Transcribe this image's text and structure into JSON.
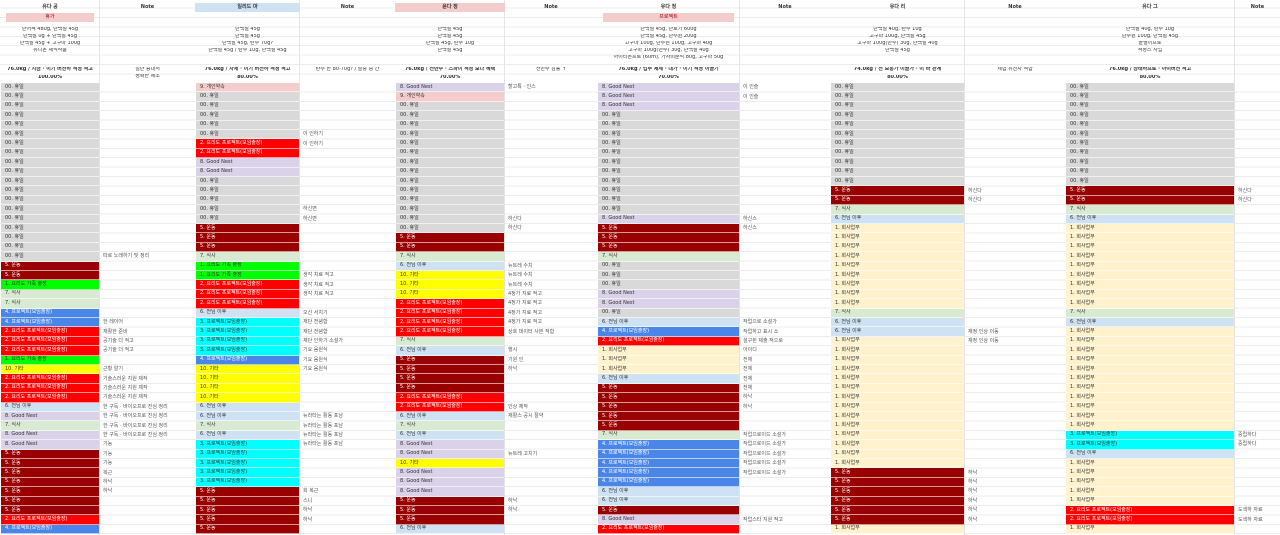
{
  "cell_colors": {
    "00. 휴일": "#d9d9d9",
    "2. 요리도 프로젝트(모임출장)": "#ff0000",
    "5. 운동": "#990000",
    "8. Good Nest": "#d9d2e9",
    "4. 프로젝트(모임출장)": "#4a86e8",
    "3. 프로젝트(모임출장)": "#00ffff",
    "10. 기타": "#ffff00",
    "1. 요리도 가족 출장": "#00ff00",
    "6. 전님 이후": "#cfe2f3",
    "1. 회사업무": "#fff2cc",
    "7. 식사": "#d9ead3",
    "9. 개인약속": "#f4cccc"
  },
  "groups": [
    {
      "name": "유다 공",
      "note_header": "Note",
      "tag": "휴가",
      "tag_color": "#f4cccc",
      "summary": [
        "단어적 480g, 단백질 45g",
        "단백질 0g + 단백질 45g",
        "단백질 45g + 고구마 100g",
        "유니온 채식작품"
      ],
      "goal": "76.0kg / 지금 · 이기 버전하 적정 적고",
      "percent": "100.00%",
      "note_summary": [
        "일반 증대서",
        "정확한 제조"
      ],
      "cells": [
        "00. 휴일",
        "00. 휴일",
        "00. 휴일",
        "00. 휴일",
        "00. 휴일",
        "00. 휴일",
        "00. 휴일",
        "00. 휴일",
        "00. 휴일",
        "00. 휴일",
        "00. 휴일",
        "00. 휴일",
        "00. 휴일",
        "00. 휴일",
        "00. 휴일",
        "00. 휴일",
        "00. 휴일",
        "00. 휴일",
        "00. 휴일",
        "5. 운동",
        "5. 운동",
        "1. 요리도 가족 출장",
        "7. 식사",
        "7. 식사",
        "4. 프로젝트(모임출장)",
        "4. 프로젝트(모임출장)",
        "2. 요리도 프로젝트(모임출장)",
        "2. 요리도 프로젝트(모임출장)",
        "2. 요리도 프로젝트(모임출장)",
        "1. 요리도 가족 출장",
        "10. 기타",
        "2. 요리도 프로젝트(모임출장)",
        "2. 요리도 프로젝트(모임출장)",
        "2. 요리도 프로젝트(모임출장)",
        "6. 전님 이후",
        "8. Good Nest",
        "7. 식사",
        "8. Good Nest",
        "8. Good Nest",
        "5. 운동",
        "5. 운동",
        "5. 운동",
        "5. 운동",
        "5. 운동",
        "5. 운동",
        "5. 운동",
        "2. 요리도 프로젝트(모임출장)",
        "4. 프로젝트(모임출장)"
      ],
      "notes": [
        null,
        null,
        null,
        null,
        null,
        null,
        null,
        null,
        null,
        null,
        null,
        null,
        null,
        null,
        null,
        null,
        null,
        null,
        "따로 노래하기 및 정리",
        null,
        null,
        null,
        null,
        null,
        null,
        "한 레이어",
        "재활한 준비",
        "공기술 더 적고",
        "공기술 더 적고",
        null,
        "근황 알기",
        "기술스러운 지원 제작",
        "기술스러운 지원 제작",
        "기술스러운 지원 제작",
        "한 구독 · 바이오프로 진심 정리",
        "한 구독 · 바이오프로 진심 정리",
        "한 구독 · 바이오프로 진심 정리",
        "한 구독 · 바이오프로 진심 정리",
        "기능",
        "기능",
        "기능",
        "복근",
        "하낙",
        "하낙",
        null,
        null,
        null,
        null
      ]
    },
    {
      "name": "일리드 마",
      "name_color": "#cfe2f3",
      "note_header": "Note",
      "summary": [
        "단백질 45g",
        "단백질 45g",
        "단백질 45g, 탄수 70g?",
        "단백질 45g / 탄수 10g, 단백질 45g"
      ],
      "goal": "76.0kg / 자체 · 이기 버전하 적정 적고",
      "percent": "80.00%",
      "note_summary": [
        "탄수 한 80-70g? / 탈중 중 간"
      ],
      "cells": [
        "9. 개인약속",
        "00. 휴일",
        "00. 휴일",
        "00. 휴일",
        "00. 휴일",
        "00. 휴일",
        "2. 요리도 프로젝트(모임출장)",
        "2. 요리도 프로젝트(모임출장)",
        "8. Good Nest",
        "8. Good Nest",
        "00. 휴일",
        "00. 휴일",
        "00. 휴일",
        "00. 휴일",
        "00. 휴일",
        "5. 운동",
        "5. 운동",
        "5. 운동",
        "7. 식사",
        "1. 요리도 가족 출장",
        "1. 요리도 가족 출장",
        "2. 요리도 프로젝트(모임출장)",
        "2. 요리도 프로젝트(모임출장)",
        "2. 요리도 프로젝트(모임출장)",
        "6. 전님 이후",
        "3. 프로젝트(모임출장)",
        "3. 프로젝트(모임출장)",
        "3. 프로젝트(모임출장)",
        "3. 프로젝트(모임출장)",
        "4. 프로젝트(모임출장)",
        "10. 기타",
        "10. 기타",
        "10. 기타",
        "10. 기타",
        "6. 전님 이후",
        "6. 전님 이후",
        "7. 식사",
        "6. 전님 이후",
        "3. 프로젝트(모임출장)",
        "3. 프로젝트(모임출장)",
        "3. 프로젝트(모임출장)",
        "3. 프로젝트(모임출장)",
        "3. 프로젝트(모임출장)",
        "5. 운동",
        "5. 운동",
        "5. 운동",
        "5. 운동",
        "5. 운동"
      ],
      "notes": [
        null,
        null,
        null,
        null,
        null,
        "이 인하기",
        "이 인하기",
        null,
        null,
        null,
        null,
        null,
        null,
        "하신면",
        "하신면",
        null,
        null,
        null,
        null,
        null,
        "생각 치료 적고",
        "생각 치료 적고",
        "생각 치료 적고",
        null,
        "오신 서치기",
        "재단 전념함",
        "재단 전념함",
        "재단 인하기 소설가",
        "기요 음원식",
        "기요 음원식",
        "기요 음원식",
        null,
        null,
        null,
        null,
        "뉴라타는 활동 포남",
        "뉴라타는 활동 포남",
        "뉴라타는 활동 포남",
        "뉴라타는 활동 포남",
        null,
        null,
        null,
        null,
        "회 복근",
        "스니",
        "하낙",
        "하낙",
        null
      ]
    },
    {
      "name": "윤다 정",
      "name_color": "#f4cccc",
      "note_header": "Note",
      "summary": [
        "단백질 45g",
        "단백질 45g",
        "단백질 45g, 탄수 10g",
        "단백질 45g"
      ],
      "goal": "76.0kg / 전반수 · 스파이 적정 보다 혜택",
      "percent": "70.00%",
      "note_summary": [
        "전반수 감률 ↑"
      ],
      "cells": [
        "8. Good Nest",
        "9. 개인약속",
        "00. 휴일",
        "00. 휴일",
        "00. 휴일",
        "00. 휴일",
        "00. 휴일",
        "00. 휴일",
        "00. 휴일",
        "00. 휴일",
        "00. 휴일",
        "00. 휴일",
        "00. 휴일",
        "00. 휴일",
        "00. 휴일",
        "00. 휴일",
        "5. 운동",
        "5. 운동",
        "7. 식사",
        "6. 전님 이후",
        "10. 기타",
        "10. 기타",
        "10. 기타",
        "2. 요리도 프로젝트(모임출장)",
        "2. 요리도 프로젝트(모임출장)",
        "2. 요리도 프로젝트(모임출장)",
        "2. 요리도 프로젝트(모임출장)",
        "7. 식사",
        "6. 전님 이후",
        "5. 운동",
        "5. 운동",
        "5. 운동",
        "5. 운동",
        "2. 요리도 프로젝트(모임출장)",
        "2. 요리도 프로젝트(모임출장)",
        "6. 전님 이후",
        "7. 식사",
        "6. 전님 이후",
        "8. Good Nest",
        "8. Good Nest",
        "10. 기타",
        "8. Good Nest",
        "8. Good Nest",
        "8. Good Nest",
        "5. 운동",
        "5. 운동",
        "5. 운동",
        "6. 전님 이후"
      ],
      "notes": [
        "할고특 · 인스",
        null,
        null,
        null,
        null,
        null,
        null,
        null,
        null,
        null,
        null,
        null,
        null,
        null,
        "하신다",
        "하신다",
        null,
        null,
        null,
        "뉴트레 수치",
        "뉴트레 수치",
        "뉴트레 수치",
        "4정가 지료 적고",
        "4정가 지료 적고",
        "4정가 지료 적고",
        "4정가 지료 적고",
        "상호 데이터 사본 적합",
        null,
        "행시",
        "기원 인",
        "하낙",
        null,
        null,
        null,
        "인상 제작",
        "재활스 공시 절약",
        null,
        null,
        null,
        "뉴트레 고치기",
        null,
        null,
        null,
        null,
        "하낙",
        "하낙",
        null,
        null
      ]
    },
    {
      "name": "유다 정",
      "note_header": "Note",
      "tag": "프로젝트",
      "tag_color": "#f4cccc",
      "summary": [
        "단백질 45g, 단호기 600g",
        "단백질 45g, 단수원 200g",
        "고구마 100g, 단수원 100g, 고구마 40g",
        "고구마 100g(반수) 30g, 단백질 40g",
        "아이티폰프로 (60m), 가자미분석 80g, 고구마 50g"
      ],
      "goal": "76.0kg / 업무 제체 · 대가 · 이기 적정 이끌기",
      "percent": "70.00%",
      "cells": [
        "8. Good Nest",
        "8. Good Nest",
        "8. Good Nest",
        "00. 휴일",
        "00. 휴일",
        "00. 휴일",
        "00. 휴일",
        "00. 휴일",
        "00. 휴일",
        "00. 휴일",
        "00. 휴일",
        "00. 휴일",
        "00. 휴일",
        "00. 휴일",
        "8. Good Nest",
        "5. 운동",
        "5. 운동",
        "5. 운동",
        "7. 식사",
        "00. 휴일",
        "00. 휴일",
        "00. 휴일",
        "8. Good Nest",
        "8. Good Nest",
        "00. 휴일",
        "6. 전님 이후",
        "4. 프로젝트(모임출장)",
        "2. 요리도 프로젝트(모임출장)",
        "1. 회사업무",
        "1. 회사업무",
        "1. 회사업무",
        "6. 전님 이후",
        "5. 운동",
        "5. 운동",
        "5. 운동",
        "5. 운동",
        "5. 운동",
        "7. 식사",
        "4. 프로젝트(모임출장)",
        "4. 프로젝트(모임출장)",
        "4. 프로젝트(모임출장)",
        "4. 프로젝트(모임출장)",
        "4. 프로젝트(모임출장)",
        "6. 전님 이후",
        "6. 전님 이후",
        "5. 운동",
        "8. Good Nest",
        "2. 요리도 프로젝트(모임출장)"
      ],
      "notes": [
        "이 인슬",
        "이 인슬",
        null,
        null,
        null,
        null,
        null,
        null,
        null,
        null,
        null,
        null,
        null,
        null,
        "하신스",
        "하신스",
        null,
        null,
        null,
        null,
        null,
        null,
        null,
        null,
        null,
        "작업으로 소설가",
        "작업하고 표시 소",
        "설구된 제출 적으로",
        "아이디",
        "전체",
        "전체",
        "전체",
        "전체",
        "하낙",
        "하낙",
        null,
        null,
        "작업으로이드 소설가",
        "작업으로이드 소설가",
        "작업으로이드 소설가",
        "작업으로이드 소설가",
        "작업으로이드 소설가",
        null,
        null,
        null,
        null,
        "작업스타 지원 적고",
        null
      ]
    },
    {
      "name": "유다 리",
      "note_header": "Note",
      "summary": [
        "단백질 40g, 탄수 10g",
        "고구마 100g, 단백질 45g",
        "고구마 100g(반수) 30g, 단백질 40g",
        "단백질 45g"
      ],
      "goal": "74.0kg / 전 보통가 이끌가 · 이 바 관계",
      "percent": "80.00%",
      "note_summary": [
        "체험 유전자 적합"
      ],
      "cells": [
        "00. 휴일",
        "00. 휴일",
        "00. 휴일",
        "00. 휴일",
        "00. 휴일",
        "00. 휴일",
        "00. 휴일",
        "00. 휴일",
        "00. 휴일",
        "00. 휴일",
        "00. 휴일",
        "5. 운동",
        "5. 운동",
        "7. 식사",
        "6. 전님 이후",
        "1. 회사업무",
        "1. 회사업무",
        "1. 회사업무",
        "1. 회사업무",
        "1. 회사업무",
        "1. 회사업무",
        "1. 회사업무",
        "1. 회사업무",
        "1. 회사업무",
        "7. 식사",
        "6. 전님 이후",
        "6. 전님 이후",
        "1. 회사업무",
        "1. 회사업무",
        "1. 회사업무",
        "1. 회사업무",
        "1. 회사업무",
        "1. 회사업무",
        "1. 회사업무",
        "1. 회사업무",
        "1. 회사업무",
        "1. 회사업무",
        "1. 회사업무",
        "1. 회사업무",
        "1. 회사업무",
        "1. 회사업무",
        "5. 운동",
        "5. 운동",
        "5. 운동",
        "5. 운동",
        "5. 운동",
        "5. 운동",
        "1. 회사업무"
      ],
      "notes": [
        null,
        null,
        null,
        null,
        null,
        null,
        null,
        null,
        null,
        null,
        null,
        "하신다",
        "하신다",
        null,
        null,
        null,
        null,
        null,
        null,
        null,
        null,
        null,
        null,
        null,
        null,
        null,
        "재정 인상 이동",
        "재정 인상 이동",
        null,
        null,
        null,
        null,
        null,
        null,
        null,
        null,
        null,
        null,
        null,
        null,
        null,
        "하낙",
        "하낙",
        "하낙",
        "하낙",
        "하낙",
        "하낙",
        null
      ]
    },
    {
      "name": "유다 그",
      "note_header": "Note",
      "summary": [
        "단백질 40g, 탄수 10g",
        "단수원 100g, 단백질 45g",
        "끝별이프로",
        "적정스 사업"
      ],
      "goal": "76.0kg / 상태하프로 · 아이버전 적고",
      "percent": "80.00%",
      "cells": [
        "00. 휴일",
        "00. 휴일",
        "00. 휴일",
        "00. 휴일",
        "00. 휴일",
        "00. 휴일",
        "00. 휴일",
        "00. 휴일",
        "00. 휴일",
        "00. 휴일",
        "00. 휴일",
        "5. 운동",
        "5. 운동",
        "7. 식사",
        "6. 전님 이후",
        "1. 회사업무",
        "1. 회사업무",
        "1. 회사업무",
        "1. 회사업무",
        "1. 회사업무",
        "1. 회사업무",
        "1. 회사업무",
        "1. 회사업무",
        "1. 회사업무",
        "7. 식사",
        "6. 전님 이후",
        "1. 회사업무",
        "1. 회사업무",
        "1. 회사업무",
        "1. 회사업무",
        "1. 회사업무",
        "1. 회사업무",
        "1. 회사업무",
        "1. 회사업무",
        "1. 회사업무",
        "1. 회사업무",
        "1. 회사업무",
        "3. 프로젝트(모임출장)",
        "3. 프로젝트(모임출장)",
        "6. 전님 이후",
        "1. 회사업무",
        "1. 회사업무",
        "1. 회사업무",
        "1. 회사업무",
        "1. 회사업무",
        "2. 요리도 프로젝트(모임출장)",
        "2. 요리도 프로젝트(모임출장)",
        "1. 회사업무"
      ],
      "notes": [
        null,
        null,
        null,
        null,
        null,
        null,
        null,
        null,
        null,
        null,
        null,
        "하신다",
        "하신다",
        null,
        null,
        null,
        null,
        null,
        null,
        null,
        null,
        null,
        null,
        null,
        null,
        null,
        null,
        null,
        null,
        null,
        null,
        null,
        null,
        null,
        null,
        null,
        null,
        "중립하다",
        "중립하다",
        null,
        null,
        null,
        null,
        null,
        null,
        "도색하 자료",
        "도색하 자료",
        null
      ]
    }
  ]
}
